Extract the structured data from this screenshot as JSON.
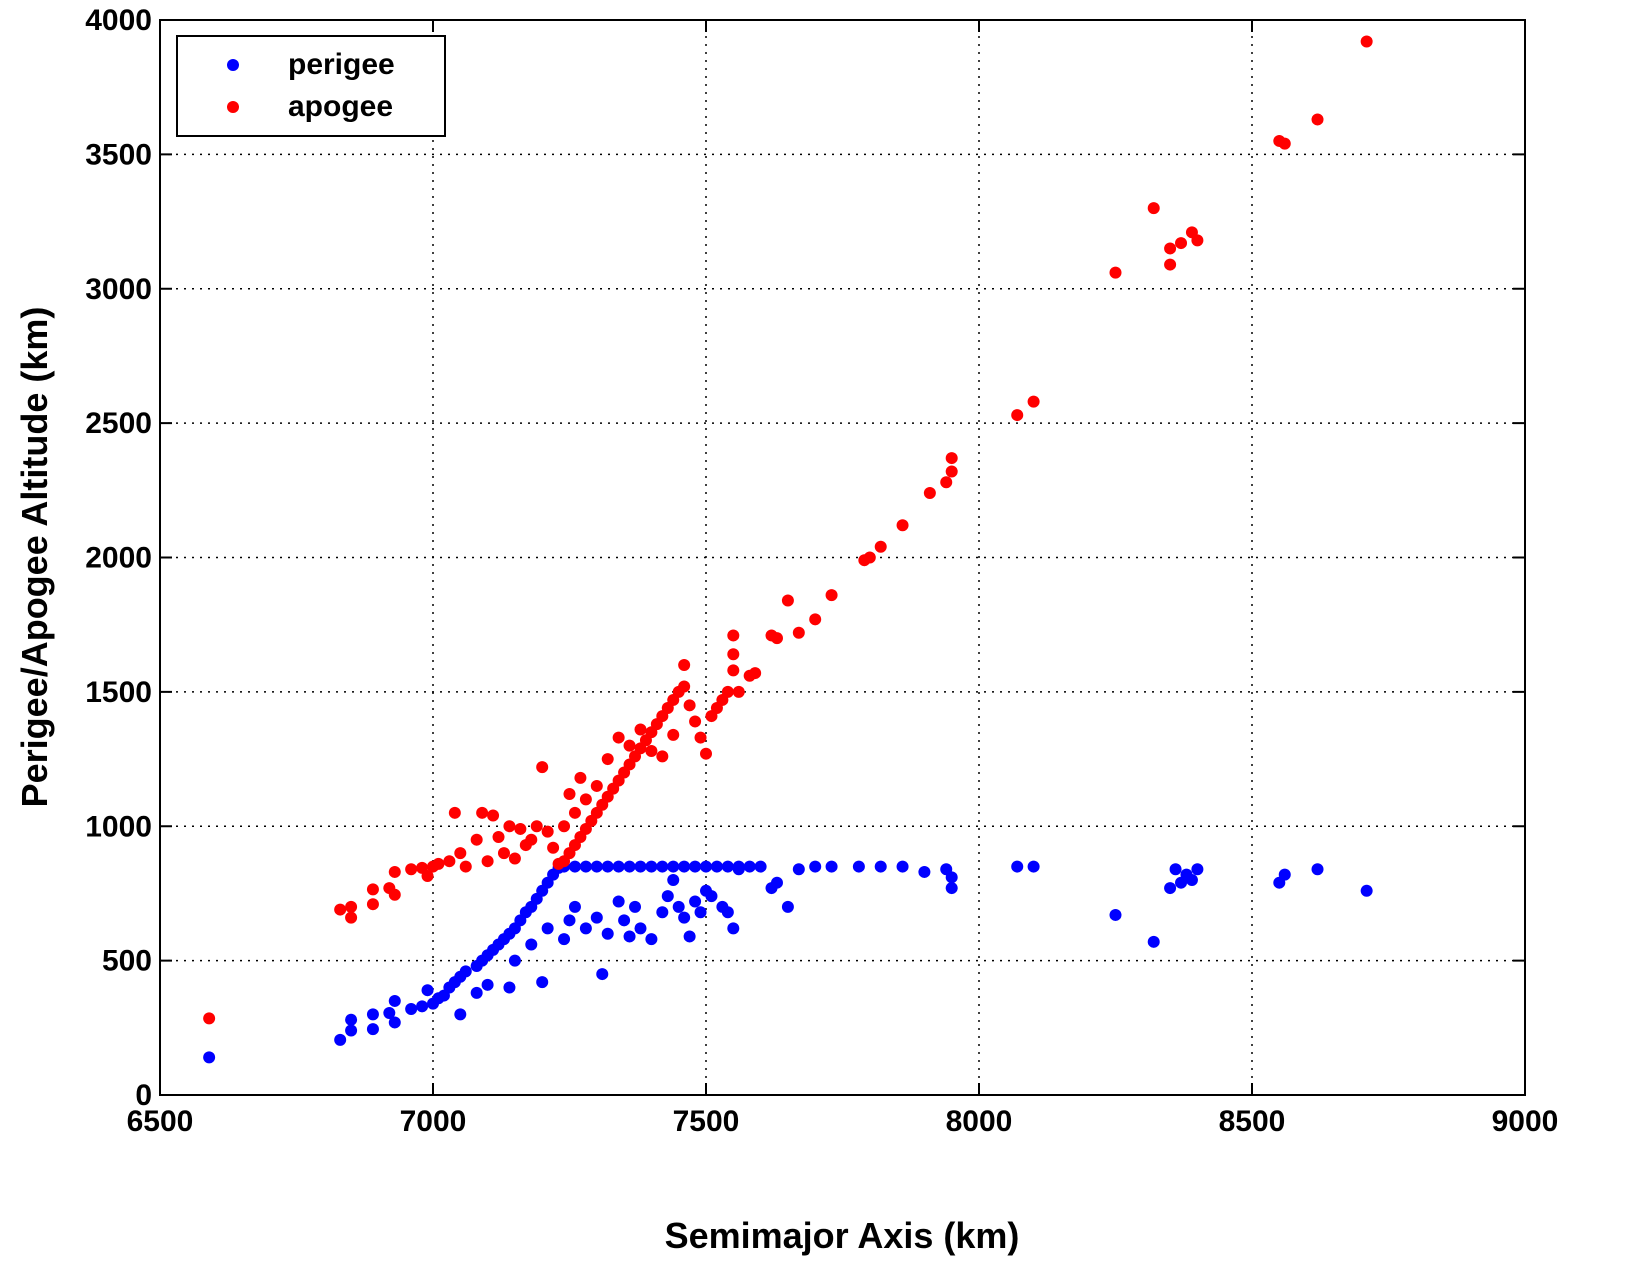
{
  "chart_data": {
    "type": "scatter",
    "title": "",
    "xlabel": "Semimajor Axis (km)",
    "ylabel": "Perigee/Apogee Altitude (km)",
    "xlim": [
      6500,
      9000
    ],
    "ylim": [
      0,
      4000
    ],
    "xticks": [
      6500,
      7000,
      7500,
      8000,
      8500,
      9000
    ],
    "yticks": [
      0,
      500,
      1000,
      1500,
      2000,
      2500,
      3000,
      3500,
      4000
    ],
    "grid": true,
    "legend_position": "top-left",
    "series": [
      {
        "name": "perigee",
        "color": "#0000ff",
        "points": [
          [
            6590,
            140
          ],
          [
            6830,
            205
          ],
          [
            6850,
            280
          ],
          [
            6850,
            240
          ],
          [
            6890,
            300
          ],
          [
            6890,
            245
          ],
          [
            6920,
            305
          ],
          [
            6930,
            350
          ],
          [
            6930,
            270
          ],
          [
            6960,
            320
          ],
          [
            6980,
            330
          ],
          [
            6990,
            390
          ],
          [
            7000,
            340
          ],
          [
            7010,
            360
          ],
          [
            7020,
            370
          ],
          [
            7030,
            400
          ],
          [
            7040,
            420
          ],
          [
            7050,
            300
          ],
          [
            7050,
            440
          ],
          [
            7060,
            460
          ],
          [
            7080,
            480
          ],
          [
            7090,
            500
          ],
          [
            7100,
            520
          ],
          [
            7110,
            540
          ],
          [
            7120,
            560
          ],
          [
            7130,
            580
          ],
          [
            7140,
            600
          ],
          [
            7150,
            620
          ],
          [
            7160,
            650
          ],
          [
            7170,
            680
          ],
          [
            7180,
            700
          ],
          [
            7190,
            730
          ],
          [
            7200,
            760
          ],
          [
            7210,
            790
          ],
          [
            7220,
            820
          ],
          [
            7230,
            845
          ],
          [
            7240,
            850
          ],
          [
            7260,
            850
          ],
          [
            7280,
            850
          ],
          [
            7300,
            850
          ],
          [
            7320,
            850
          ],
          [
            7340,
            850
          ],
          [
            7360,
            850
          ],
          [
            7380,
            850
          ],
          [
            7400,
            850
          ],
          [
            7420,
            850
          ],
          [
            7440,
            850
          ],
          [
            7460,
            850
          ],
          [
            7480,
            850
          ],
          [
            7500,
            850
          ],
          [
            7520,
            850
          ],
          [
            7540,
            850
          ],
          [
            7560,
            850
          ],
          [
            7580,
            850
          ],
          [
            7600,
            850
          ],
          [
            7080,
            380
          ],
          [
            7100,
            410
          ],
          [
            7140,
            400
          ],
          [
            7200,
            420
          ],
          [
            7150,
            500
          ],
          [
            7180,
            560
          ],
          [
            7210,
            620
          ],
          [
            7240,
            580
          ],
          [
            7250,
            650
          ],
          [
            7260,
            700
          ],
          [
            7280,
            620
          ],
          [
            7300,
            660
          ],
          [
            7310,
            450
          ],
          [
            7320,
            600
          ],
          [
            7340,
            720
          ],
          [
            7350,
            650
          ],
          [
            7360,
            590
          ],
          [
            7370,
            700
          ],
          [
            7380,
            620
          ],
          [
            7400,
            580
          ],
          [
            7420,
            680
          ],
          [
            7430,
            740
          ],
          [
            7440,
            800
          ],
          [
            7450,
            700
          ],
          [
            7460,
            660
          ],
          [
            7470,
            590
          ],
          [
            7480,
            720
          ],
          [
            7490,
            680
          ],
          [
            7500,
            760
          ],
          [
            7510,
            740
          ],
          [
            7530,
            700
          ],
          [
            7540,
            680
          ],
          [
            7550,
            620
          ],
          [
            7560,
            840
          ],
          [
            7620,
            770
          ],
          [
            7630,
            790
          ],
          [
            7650,
            700
          ],
          [
            7670,
            840
          ],
          [
            7700,
            850
          ],
          [
            7730,
            850
          ],
          [
            7780,
            850
          ],
          [
            7820,
            850
          ],
          [
            7860,
            850
          ],
          [
            7900,
            830
          ],
          [
            7940,
            840
          ],
          [
            7950,
            810
          ],
          [
            7950,
            770
          ],
          [
            8070,
            850
          ],
          [
            8100,
            850
          ],
          [
            8250,
            670
          ],
          [
            8320,
            570
          ],
          [
            8350,
            770
          ],
          [
            8360,
            840
          ],
          [
            8370,
            790
          ],
          [
            8380,
            820
          ],
          [
            8390,
            800
          ],
          [
            8400,
            840
          ],
          [
            8550,
            790
          ],
          [
            8560,
            820
          ],
          [
            8620,
            840
          ],
          [
            8710,
            760
          ]
        ]
      },
      {
        "name": "apogee",
        "color": "#ff0000",
        "points": [
          [
            6590,
            285
          ],
          [
            6830,
            690
          ],
          [
            6850,
            700
          ],
          [
            6850,
            660
          ],
          [
            6890,
            765
          ],
          [
            6890,
            710
          ],
          [
            6920,
            770
          ],
          [
            6930,
            830
          ],
          [
            6930,
            745
          ],
          [
            6960,
            840
          ],
          [
            6980,
            845
          ],
          [
            6990,
            815
          ],
          [
            7000,
            850
          ],
          [
            7010,
            860
          ],
          [
            7030,
            870
          ],
          [
            7040,
            1050
          ],
          [
            7050,
            900
          ],
          [
            7060,
            850
          ],
          [
            7080,
            950
          ],
          [
            7090,
            1050
          ],
          [
            7100,
            870
          ],
          [
            7110,
            1040
          ],
          [
            7120,
            960
          ],
          [
            7130,
            900
          ],
          [
            7140,
            1000
          ],
          [
            7150,
            880
          ],
          [
            7160,
            990
          ],
          [
            7170,
            930
          ],
          [
            7180,
            950
          ],
          [
            7190,
            1000
          ],
          [
            7200,
            1220
          ],
          [
            7210,
            980
          ],
          [
            7220,
            920
          ],
          [
            7230,
            860
          ],
          [
            7240,
            870
          ],
          [
            7250,
            900
          ],
          [
            7260,
            930
          ],
          [
            7270,
            960
          ],
          [
            7280,
            990
          ],
          [
            7290,
            1020
          ],
          [
            7300,
            1050
          ],
          [
            7310,
            1080
          ],
          [
            7320,
            1110
          ],
          [
            7330,
            1140
          ],
          [
            7340,
            1170
          ],
          [
            7350,
            1200
          ],
          [
            7360,
            1230
          ],
          [
            7370,
            1260
          ],
          [
            7380,
            1290
          ],
          [
            7390,
            1320
          ],
          [
            7400,
            1350
          ],
          [
            7410,
            1380
          ],
          [
            7420,
            1410
          ],
          [
            7430,
            1440
          ],
          [
            7440,
            1470
          ],
          [
            7450,
            1500
          ],
          [
            7460,
            1520
          ],
          [
            7470,
            1450
          ],
          [
            7480,
            1390
          ],
          [
            7490,
            1330
          ],
          [
            7500,
            1270
          ],
          [
            7510,
            1410
          ],
          [
            7520,
            1440
          ],
          [
            7530,
            1470
          ],
          [
            7540,
            1500
          ],
          [
            7550,
            1580
          ],
          [
            7550,
            1640
          ],
          [
            7550,
            1710
          ],
          [
            7560,
            1500
          ],
          [
            7580,
            1560
          ],
          [
            7590,
            1570
          ],
          [
            7620,
            1710
          ],
          [
            7630,
            1700
          ],
          [
            7650,
            1840
          ],
          [
            7670,
            1720
          ],
          [
            7700,
            1770
          ],
          [
            7730,
            1860
          ],
          [
            7790,
            1990
          ],
          [
            7800,
            2000
          ],
          [
            7820,
            2040
          ],
          [
            7860,
            2120
          ],
          [
            7910,
            2240
          ],
          [
            7940,
            2280
          ],
          [
            7950,
            2320
          ],
          [
            7950,
            2370
          ],
          [
            8070,
            2530
          ],
          [
            8100,
            2580
          ],
          [
            8250,
            3060
          ],
          [
            8320,
            3300
          ],
          [
            8350,
            3150
          ],
          [
            8350,
            3090
          ],
          [
            8370,
            3170
          ],
          [
            8390,
            3210
          ],
          [
            8400,
            3180
          ],
          [
            8550,
            3550
          ],
          [
            8560,
            3540
          ],
          [
            8620,
            3630
          ],
          [
            8710,
            3920
          ],
          [
            7240,
            1000
          ],
          [
            7260,
            1050
          ],
          [
            7280,
            1100
          ],
          [
            7300,
            1150
          ],
          [
            7250,
            1120
          ],
          [
            7270,
            1180
          ],
          [
            7320,
            1250
          ],
          [
            7340,
            1330
          ],
          [
            7360,
            1300
          ],
          [
            7380,
            1360
          ],
          [
            7400,
            1280
          ],
          [
            7420,
            1260
          ],
          [
            7440,
            1340
          ],
          [
            7460,
            1600
          ]
        ]
      }
    ]
  }
}
